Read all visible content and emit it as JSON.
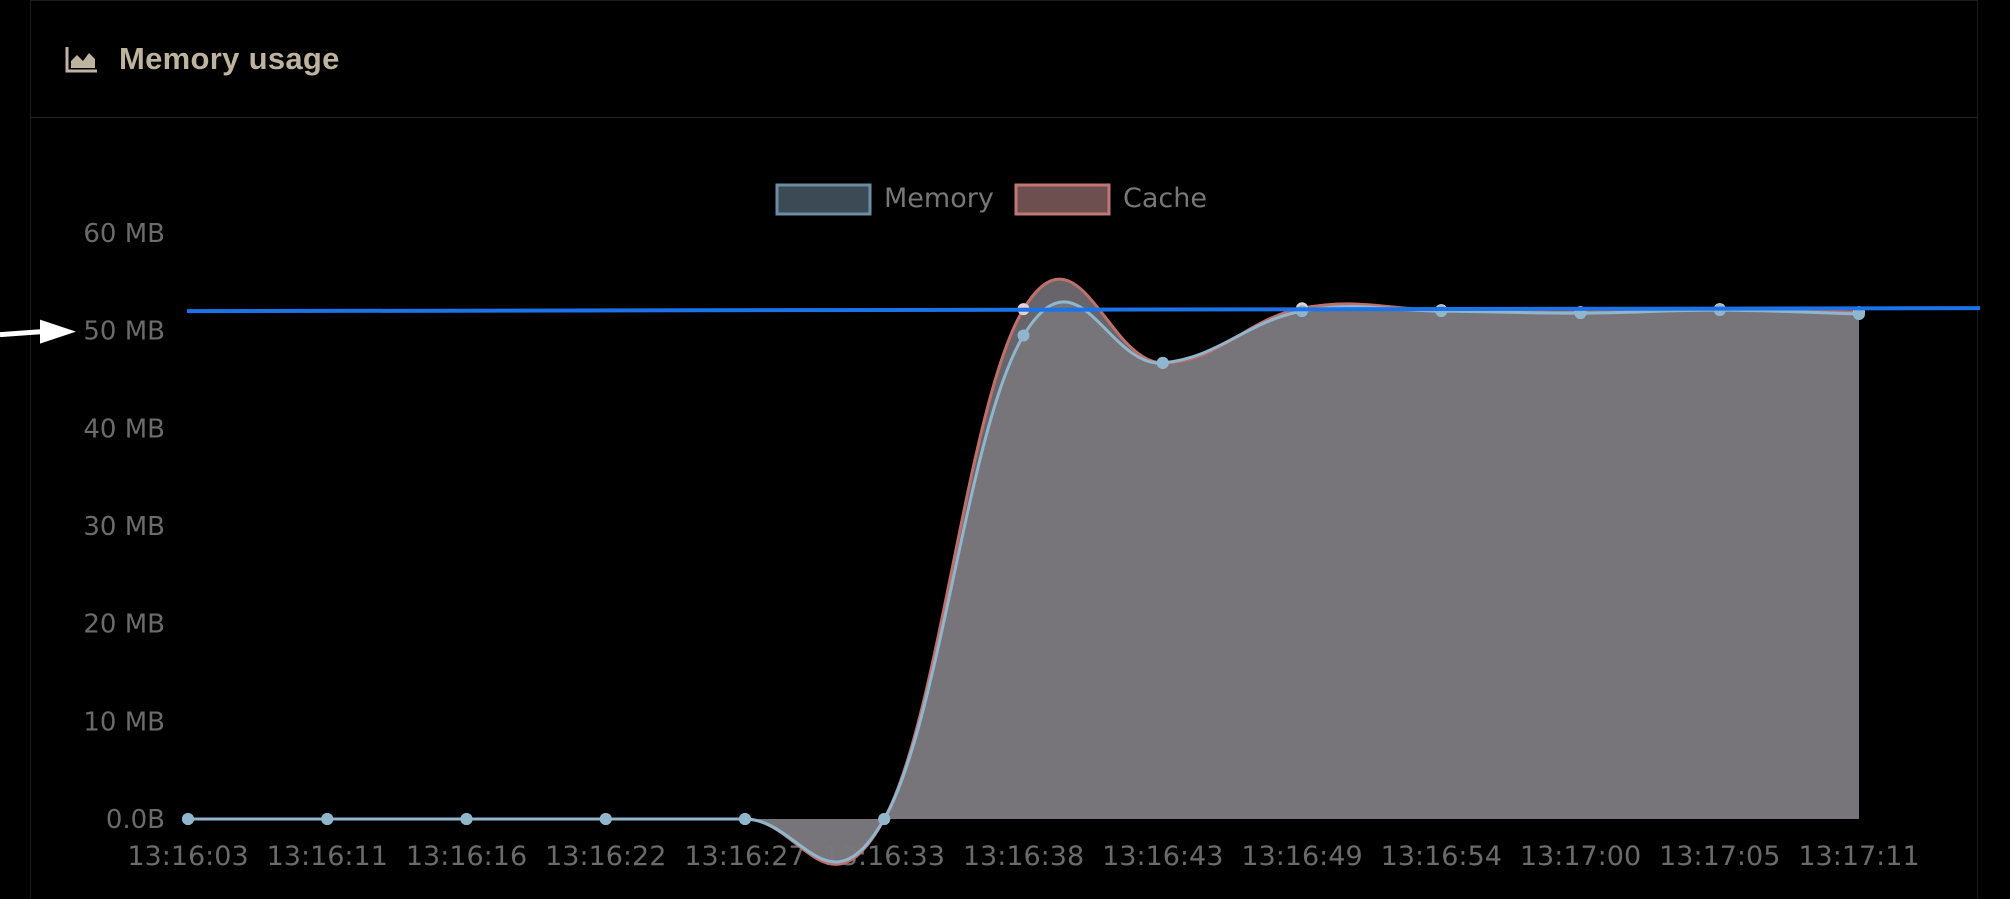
{
  "panel": {
    "title": "Memory usage",
    "icon": "area-chart-icon"
  },
  "colors": {
    "memory_line": "#8fb6cc",
    "memory_legend_fill": "#3b4a55",
    "memory_legend_stroke": "#6a8ea3",
    "cache_line": "#c0706a",
    "cache_legend_fill": "#6e4f4f",
    "cache_legend_stroke": "#c07872",
    "area_fill": "#7a777c",
    "threshold": "#1a73e8",
    "tick_text": "#6b6b6b",
    "legend_text": "#777777"
  },
  "annotation": {
    "type": "arrow",
    "points_to": "50 MB"
  },
  "chart_data": {
    "type": "area",
    "title": "Memory usage",
    "xlabel": "",
    "ylabel": "",
    "ylim": [
      0,
      62
    ],
    "y_unit": "MB",
    "y_ticks": [
      0,
      10,
      20,
      30,
      40,
      50,
      60
    ],
    "y_tick_labels": [
      "0.0B",
      "10 MB",
      "20 MB",
      "30 MB",
      "40 MB",
      "50 MB",
      "60 MB"
    ],
    "categories": [
      "13:16:03",
      "13:16:11",
      "13:16:16",
      "13:16:22",
      "13:16:27",
      "13:16:33",
      "13:16:38",
      "13:16:43",
      "13:16:49",
      "13:16:54",
      "13:17:00",
      "13:17:05",
      "13:17:11"
    ],
    "series": [
      {
        "name": "Memory",
        "values": [
          0,
          0,
          0,
          0,
          0,
          0,
          49.5,
          46.7,
          52.0,
          52.0,
          51.8,
          52.1,
          51.7
        ]
      },
      {
        "name": "Cache",
        "values": [
          0,
          0,
          0,
          0,
          0,
          0,
          52.2,
          46.7,
          52.3,
          52.1,
          51.9,
          52.2,
          51.9
        ]
      }
    ],
    "threshold_line": {
      "y_start": 52.0,
      "y_end": 52.2
    },
    "legend": "top-center",
    "grid": false
  }
}
